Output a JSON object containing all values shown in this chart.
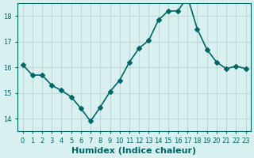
{
  "x": [
    0,
    1,
    2,
    3,
    4,
    5,
    6,
    7,
    8,
    9,
    10,
    11,
    12,
    13,
    14,
    15,
    16,
    17,
    18,
    19,
    20,
    21,
    22,
    23
  ],
  "y": [
    16.1,
    15.7,
    15.7,
    15.3,
    15.1,
    14.85,
    14.4,
    13.9,
    14.45,
    15.05,
    15.5,
    16.2,
    16.75,
    17.05,
    17.85,
    18.2,
    18.2,
    18.75,
    17.5,
    16.7,
    16.2,
    15.95,
    16.05,
    15.95
  ],
  "xlabel": "Humidex (Indice chaleur)",
  "ylabel": "",
  "title": "",
  "line_color": "#006666",
  "marker": "D",
  "marker_size": 3,
  "background_color": "#d9f0f0",
  "grid_color": "#c0d8d8",
  "ylim": [
    13.5,
    18.5
  ],
  "xlim": [
    -0.5,
    23.5
  ],
  "yticks": [
    14,
    15,
    16,
    17,
    18
  ],
  "xtick_labels": [
    "0",
    "1",
    "2",
    "3",
    "4",
    "5",
    "6",
    "7",
    "8",
    "9",
    "10",
    "11",
    "12",
    "13",
    "14",
    "15",
    "16",
    "17",
    "18",
    "19",
    "20",
    "21",
    "22",
    "23"
  ],
  "tick_color": "#006666",
  "label_fontsize": 8,
  "tick_fontsize": 6
}
